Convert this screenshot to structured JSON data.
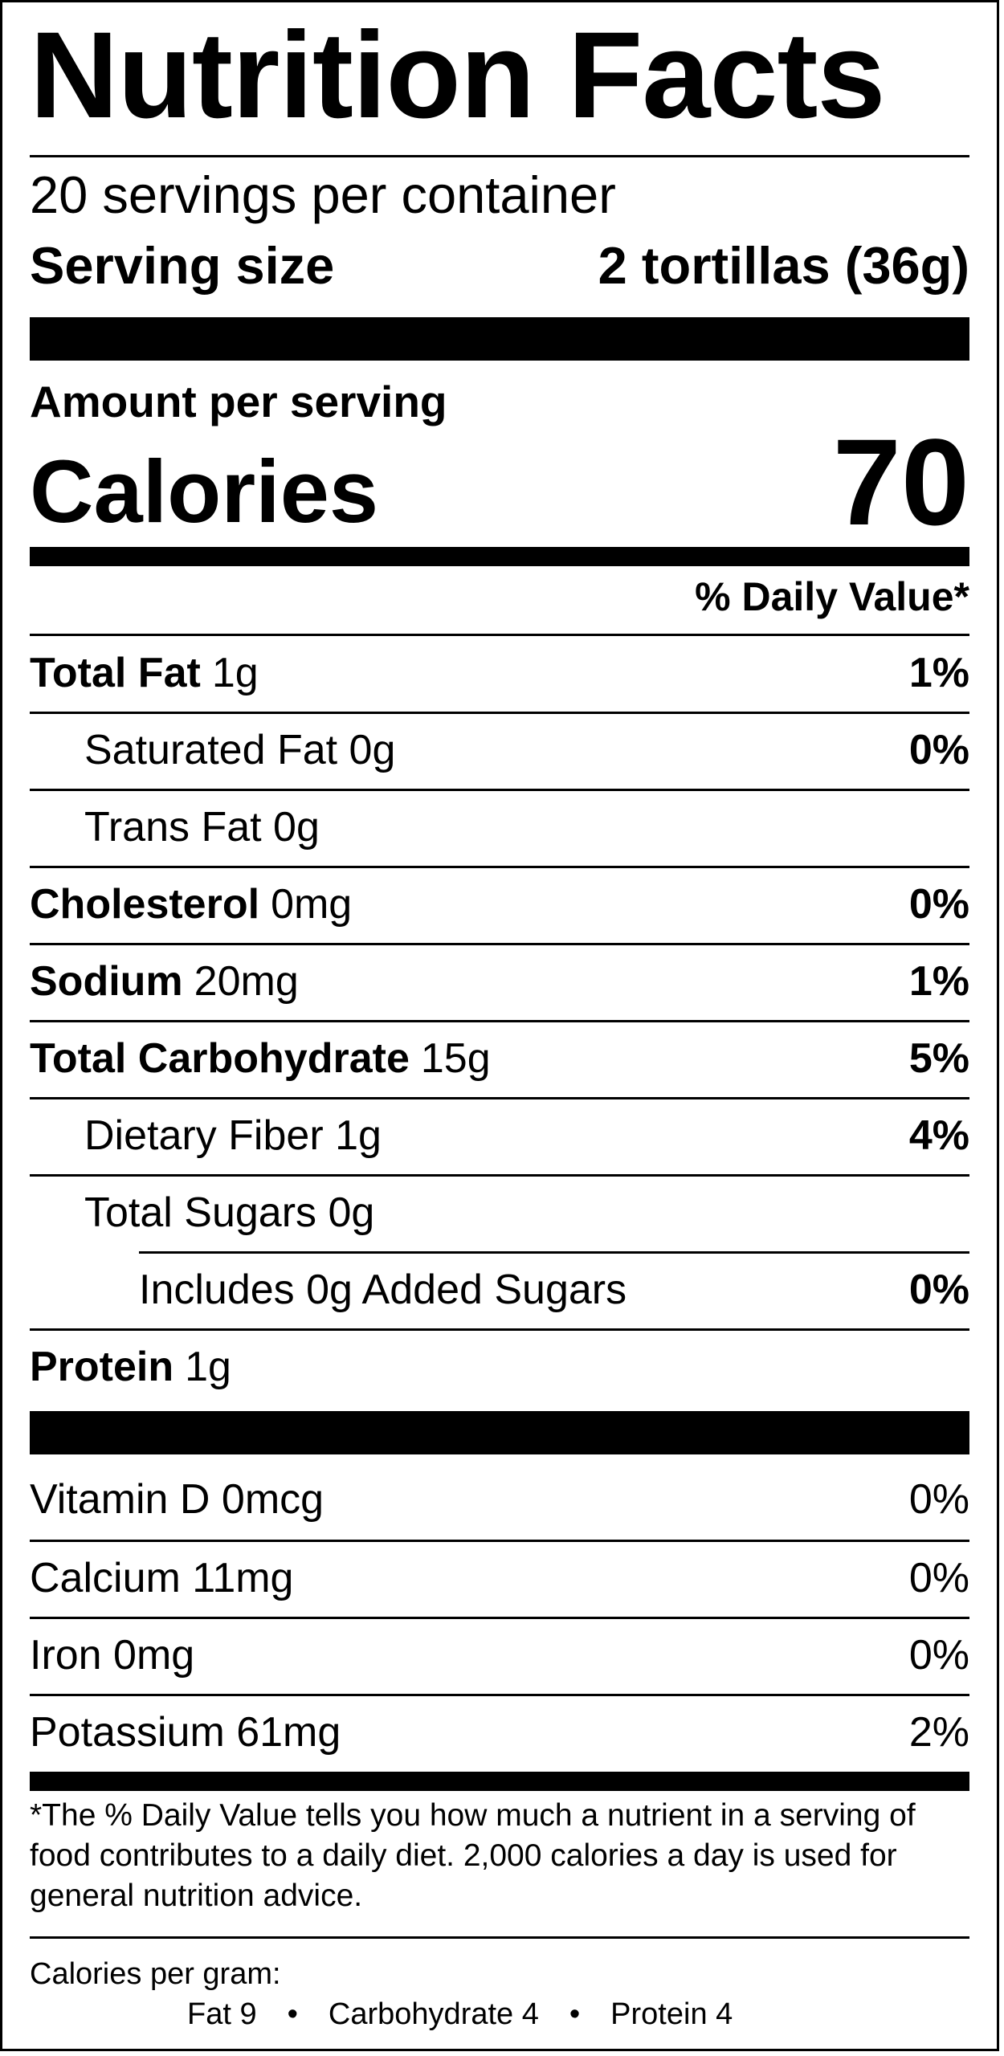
{
  "title": "Nutrition Facts",
  "servings_per_container": "20 servings per container",
  "serving_size_label": "Serving size",
  "serving_size_value": "2 tortillas (36g)",
  "amount_per_serving": "Amount per serving",
  "calories_label": "Calories",
  "calories_value": "70",
  "daily_value_header": "% Daily Value*",
  "nutrients": [
    {
      "name": "Total Fat",
      "amount": "1g",
      "dv": "1%"
    },
    {
      "name": "Saturated Fat",
      "amount": "0g",
      "dv": "0%"
    },
    {
      "name": "Trans Fat",
      "amount": "0g",
      "dv": ""
    },
    {
      "name": "Cholesterol",
      "amount": "0mg",
      "dv": "0%"
    },
    {
      "name": "Sodium",
      "amount": "20mg",
      "dv": "1%"
    },
    {
      "name": "Total Carbohydrate",
      "amount": "15g",
      "dv": "5%"
    },
    {
      "name": "Dietary Fiber",
      "amount": "1g",
      "dv": "4%"
    },
    {
      "name": "Total Sugars",
      "amount": "0g",
      "dv": ""
    },
    {
      "name": "Includes 0g Added Sugars",
      "amount": "",
      "dv": "0%"
    },
    {
      "name": "Protein",
      "amount": "1g",
      "dv": ""
    }
  ],
  "vitamins": [
    {
      "name": "Vitamin D 0mcg",
      "dv": "0%"
    },
    {
      "name": "Calcium 11mg",
      "dv": "0%"
    },
    {
      "name": "Iron 0mg",
      "dv": "0%"
    },
    {
      "name": "Potassium 61mg",
      "dv": "2%"
    }
  ],
  "footnote": "*The % Daily Value tells you how much a nutrient in a serving of food contributes to a daily diet. 2,000 calories a day is used for general nutrition advice.",
  "calories_per_gram": {
    "title": "Calories per gram:",
    "fat": "Fat 9",
    "carbohydrate": "Carbohydrate 4",
    "protein": "Protein 4",
    "separator": "•"
  }
}
